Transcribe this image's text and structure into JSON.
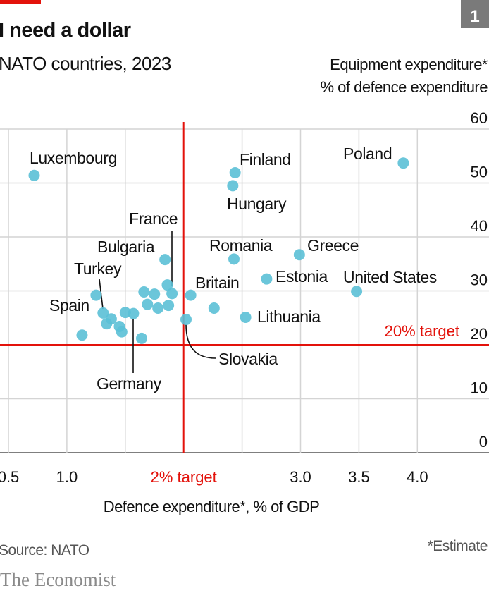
{
  "header": {
    "chart_number": "1",
    "title": "I need a dollar",
    "subtitle": "NATO countries, 2023",
    "accent_color": "#e3120b"
  },
  "footer": {
    "source": "Source: NATO",
    "note": "*Estimate",
    "brand": "The Economist"
  },
  "chart_data": {
    "type": "scatter",
    "title": "I need a dollar",
    "subtitle": "NATO countries, 2023",
    "xlabel": "Defence expenditure*, % of GDP",
    "ylabel": "Equipment expenditure*",
    "ylabel_sub": "% of defence expenditure",
    "xlim": [
      0.5,
      4.6
    ],
    "ylim": [
      0,
      60
    ],
    "x_ticks": [
      0.5,
      1.0,
      1.5,
      2.0,
      2.5,
      3.0,
      3.5,
      4.0
    ],
    "x_tick_labels": [
      "0.5",
      "1.0",
      "",
      "",
      "",
      "3.0",
      "3.5",
      "4.0"
    ],
    "y_ticks": [
      0,
      10,
      20,
      30,
      40,
      50,
      60
    ],
    "y_tick_labels": [
      "0",
      "10",
      "20",
      "30",
      "40",
      "50",
      "60"
    ],
    "grid": true,
    "point_color": "#5bc0d6",
    "target_color": "#e3120b",
    "reference_lines": [
      {
        "axis": "x",
        "value": 2,
        "label": "2% target"
      },
      {
        "axis": "y",
        "value": 20,
        "label": "20% target"
      }
    ],
    "points": [
      {
        "label": "Luxembourg",
        "x": 0.72,
        "y": 51.4
      },
      {
        "label": "Finland",
        "x": 2.44,
        "y": 51.9
      },
      {
        "label": "Hungary",
        "x": 2.42,
        "y": 49.5
      },
      {
        "label": "Poland",
        "x": 3.88,
        "y": 53.7
      },
      {
        "label": "Bulgaria",
        "x": 1.84,
        "y": 35.8
      },
      {
        "label": "Romania",
        "x": 2.43,
        "y": 35.9
      },
      {
        "label": "Greece",
        "x": 2.99,
        "y": 36.7
      },
      {
        "label": "Estonia",
        "x": 2.71,
        "y": 32.2
      },
      {
        "label": "United States",
        "x": 3.48,
        "y": 29.9
      },
      {
        "label": "Britain",
        "x": 2.06,
        "y": 29.2
      },
      {
        "label": "",
        "x": 2.26,
        "y": 26.8
      },
      {
        "label": "Lithuania",
        "x": 2.53,
        "y": 25.1
      },
      {
        "label": "Slovakia",
        "x": 2.02,
        "y": 24.7
      },
      {
        "label": "France",
        "x": 1.9,
        "y": 29.5
      },
      {
        "label": "",
        "x": 1.86,
        "y": 31.1
      },
      {
        "label": "",
        "x": 1.66,
        "y": 29.8
      },
      {
        "label": "",
        "x": 1.75,
        "y": 29.4
      },
      {
        "label": "",
        "x": 1.69,
        "y": 27.5
      },
      {
        "label": "",
        "x": 1.78,
        "y": 26.8
      },
      {
        "label": "",
        "x": 1.87,
        "y": 27.3
      },
      {
        "label": "Turkey",
        "x": 1.25,
        "y": 29.2
      },
      {
        "label": "Spain",
        "x": 1.31,
        "y": 25.9
      },
      {
        "label": "",
        "x": 1.38,
        "y": 24.8
      },
      {
        "label": "",
        "x": 1.34,
        "y": 23.9
      },
      {
        "label": "",
        "x": 1.45,
        "y": 23.4
      },
      {
        "label": "",
        "x": 1.47,
        "y": 22.4
      },
      {
        "label": "",
        "x": 1.5,
        "y": 26.0
      },
      {
        "label": "Germany",
        "x": 1.57,
        "y": 25.8
      },
      {
        "label": "",
        "x": 1.13,
        "y": 21.8
      },
      {
        "label": "",
        "x": 1.64,
        "y": 21.2
      }
    ]
  }
}
